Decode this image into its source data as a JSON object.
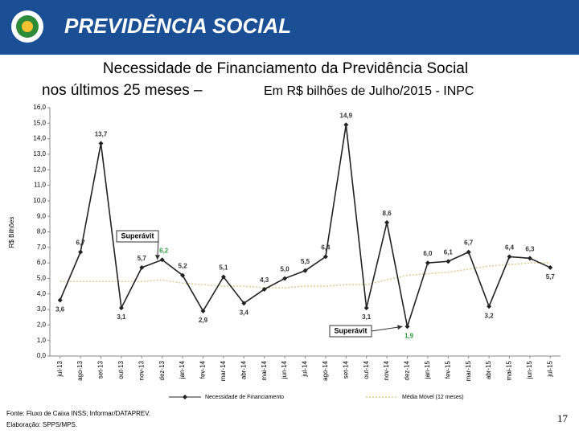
{
  "header": {
    "title": "PREVIDÊNCIA SOCIAL"
  },
  "chart_data": {
    "type": "line",
    "title": "Necessidade de Financiamento da Previdência Social",
    "subtitle_bold": "nos últimos 25 meses –",
    "subtitle": "Em R$ bilhões de Julho/2015 - INPC",
    "y_label": "R$ Bilhões",
    "categories": [
      "jul-13",
      "ago-13",
      "set-13",
      "out-13",
      "nov-13",
      "dez-13",
      "jan-14",
      "fev-14",
      "mar-14",
      "abr-14",
      "mai-14",
      "jun-14",
      "jul-14",
      "ago-14",
      "set-14",
      "out-14",
      "nov-14",
      "dez-14",
      "jan-15",
      "fev-15",
      "mar-15",
      "abr-15",
      "mai-15",
      "jun-15",
      "jul-15"
    ],
    "series": [
      {
        "name": "Necessidade de Financiamento",
        "color": "#222222",
        "values": [
          3.6,
          6.7,
          13.7,
          3.1,
          5.7,
          6.2,
          5.2,
          2.9,
          5.1,
          3.4,
          4.3,
          5.0,
          5.5,
          6.4,
          14.9,
          3.1,
          8.6,
          1.9,
          6.0,
          6.1,
          6.7,
          3.2,
          6.4,
          6.3,
          5.7
        ],
        "value_labels": [
          "3,6",
          "6,7",
          "13,7",
          "3,1",
          "5,7",
          "6,2",
          "5,2",
          "2,9",
          "5,1",
          "3,4",
          "4,3",
          "5,0",
          "5,5",
          "6,4",
          "14,9",
          "3,1",
          "8,6",
          "1,9",
          "6,0",
          "6,1",
          "6,7",
          "3,2",
          "6,4",
          "6,3",
          "5,7"
        ]
      },
      {
        "name": "Média Móvel (12 meses)",
        "color": "#e0c890",
        "values": [
          4.8,
          4.8,
          4.8,
          4.8,
          4.8,
          4.9,
          4.7,
          4.6,
          4.5,
          4.5,
          4.4,
          4.4,
          4.5,
          4.5,
          4.6,
          4.6,
          4.9,
          5.2,
          5.3,
          5.4,
          5.6,
          5.8,
          5.9,
          6.0,
          6.0
        ]
      }
    ],
    "ylim": [
      0,
      16
    ],
    "yticks": [
      {
        "value": 0,
        "label": "0,0"
      },
      {
        "value": 1,
        "label": "1,0"
      },
      {
        "value": 2,
        "label": "2,0"
      },
      {
        "value": 3,
        "label": "3,0"
      },
      {
        "value": 4,
        "label": "4,0"
      },
      {
        "value": 5,
        "label": "5,0"
      },
      {
        "value": 6,
        "label": "6,0"
      },
      {
        "value": 7,
        "label": "7,0"
      },
      {
        "value": 8,
        "label": "8,0"
      },
      {
        "value": 9,
        "label": "9,0"
      },
      {
        "value": 10,
        "label": "10,0"
      },
      {
        "value": 11,
        "label": "11,0"
      },
      {
        "value": 12,
        "label": "12,0"
      },
      {
        "value": 13,
        "label": "13,0"
      },
      {
        "value": 14,
        "label": "14,0"
      },
      {
        "value": 15,
        "label": "15,0"
      },
      {
        "value": 16,
        "label": "16,0"
      }
    ],
    "annotations": [
      "Superávit",
      "Superávit"
    ]
  },
  "footer": {
    "source": "Fonte: Fluxo de Caixa INSS; Informar/DATAPREV.",
    "credit": "Elaboração: SPPS/MPS.",
    "page": "17"
  }
}
